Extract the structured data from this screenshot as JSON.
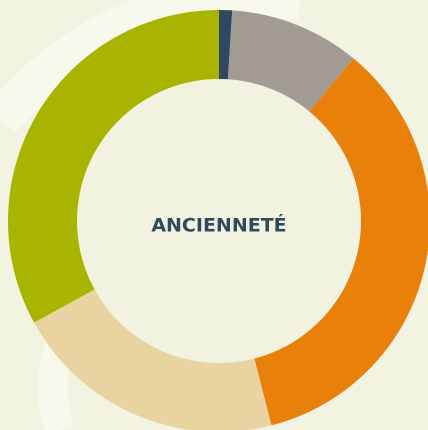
{
  "chart_data": {
    "type": "donut",
    "title": "ANCIENNETÉ",
    "values": [
      1,
      10,
      35,
      21,
      33
    ],
    "colors": [
      "#2e4a63",
      "#a19b93",
      "#e8800a",
      "#e9d4a1",
      "#a9b400"
    ]
  }
}
